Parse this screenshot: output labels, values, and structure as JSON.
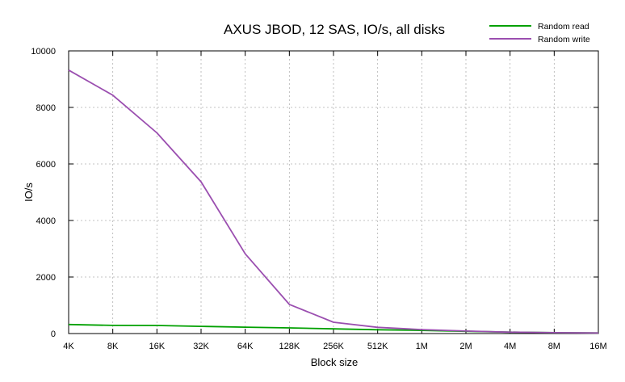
{
  "chart_data": {
    "type": "line",
    "title": "AXUS JBOD, 12 SAS, IO/s, all disks",
    "xlabel": "Block size",
    "ylabel": "IO/s",
    "x": [
      "4K",
      "8K",
      "16K",
      "32K",
      "64K",
      "128K",
      "256K",
      "512K",
      "1M",
      "2M",
      "4M",
      "8M",
      "16M"
    ],
    "ylim": [
      0,
      10000
    ],
    "yticks": [
      0,
      2000,
      4000,
      6000,
      8000,
      10000
    ],
    "grid": true,
    "legend": "top-right",
    "series": [
      {
        "name": "Random read",
        "color": "#00a000",
        "values": [
          320,
          290,
          285,
          255,
          225,
          200,
          165,
          135,
          110,
          80,
          50,
          30,
          20
        ]
      },
      {
        "name": "Random write",
        "color": "#9b4fb0",
        "values": [
          9320,
          8430,
          7100,
          5370,
          2820,
          1030,
          400,
          220,
          140,
          90,
          50,
          30,
          20
        ]
      }
    ]
  }
}
